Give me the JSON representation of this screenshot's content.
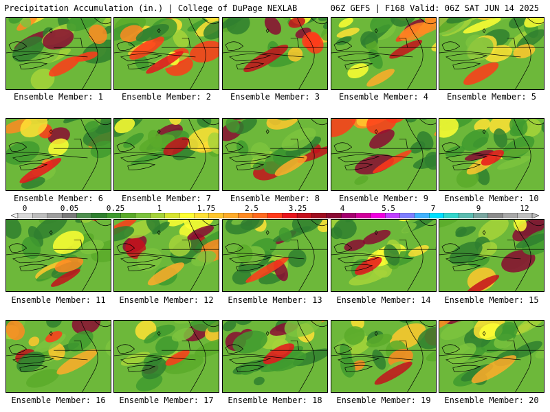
{
  "header": {
    "left": "Precipitation Accumulation (in.) | College of DuPage NEXLAB",
    "right": "06Z GEFS | F168 Valid: 06Z SAT JUN 14 2025"
  },
  "panels": [
    {
      "label": "Ensemble Member: 1"
    },
    {
      "label": "Ensemble Member: 2"
    },
    {
      "label": "Ensemble Member: 3"
    },
    {
      "label": "Ensemble Member: 4"
    },
    {
      "label": "Ensemble Member: 5"
    },
    {
      "label": "Ensemble Member: 6"
    },
    {
      "label": "Ensemble Member: 7"
    },
    {
      "label": "Ensemble Member: 8"
    },
    {
      "label": "Ensemble Member: 9"
    },
    {
      "label": "Ensemble Member: 10"
    },
    {
      "label": "Ensemble Member: 11"
    },
    {
      "label": "Ensemble Member: 12"
    },
    {
      "label": "Ensemble Member: 13"
    },
    {
      "label": "Ensemble Member: 14"
    },
    {
      "label": "Ensemble Member: 15"
    },
    {
      "label": "Ensemble Member: 16"
    },
    {
      "label": "Ensemble Member: 17"
    },
    {
      "label": "Ensemble Member: 18"
    },
    {
      "label": "Ensemble Member: 19"
    },
    {
      "label": "Ensemble Member: 20"
    }
  ],
  "colorbar": {
    "labels": [
      "0",
      "0.05",
      "0.25",
      "1",
      "1.75",
      "2.5",
      "3.25",
      "4",
      "5.5",
      "7",
      "9",
      "12"
    ],
    "colors": [
      "#d9d9d9",
      "#bdbdbd",
      "#9e9e9e",
      "#7b7b7b",
      "#4f8f4f",
      "#2f7f2f",
      "#3f9a2f",
      "#5aaa2a",
      "#7cc33e",
      "#a6d33a",
      "#d7e531",
      "#ffff33",
      "#ffe135",
      "#ffc72e",
      "#ffac2a",
      "#ff8a22",
      "#ff6a1f",
      "#ff3a1a",
      "#e8141c",
      "#c4101c",
      "#9e0d1f",
      "#8a0a33",
      "#a5006e",
      "#d0009a",
      "#f000e0",
      "#c040ff",
      "#7f7fff",
      "#42b3ff",
      "#00e0ff",
      "#33d6cc",
      "#5cbcb0",
      "#7aa6a0",
      "#8c8c8c",
      "#a8a8a8",
      "#bfbfbf"
    ]
  },
  "chart_data": {
    "type": "heatmap",
    "title": "Precipitation Accumulation (in.)",
    "model": "06Z GEFS",
    "forecast_hour": "F168",
    "valid": "06Z SAT JUN 14 2025",
    "units": "in.",
    "colorbar_ticks": [
      0,
      0.05,
      0.25,
      1,
      1.75,
      2.5,
      3.25,
      4,
      5.5,
      7,
      9,
      12
    ],
    "members": [
      1,
      2,
      3,
      4,
      5,
      6,
      7,
      8,
      9,
      10,
      11,
      12,
      13,
      14,
      15,
      16,
      17,
      18,
      19,
      20
    ]
  }
}
